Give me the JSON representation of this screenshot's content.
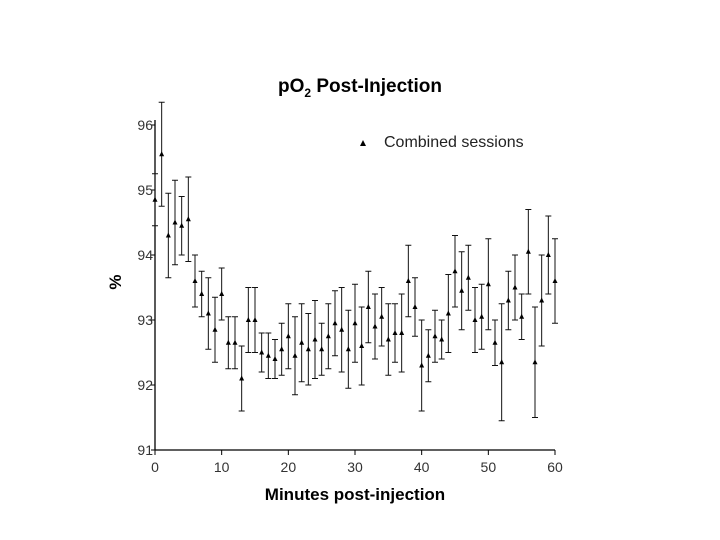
{
  "chart_data": {
    "type": "scatter",
    "title_main": "pO",
    "title_sub": "2",
    "title_rest": " Post-Injection",
    "xlabel": "Minutes post-injection",
    "ylabel": "%",
    "xlim": [
      0,
      60
    ],
    "ylim": [
      91,
      96
    ],
    "xticks": [
      "0",
      "10",
      "20",
      "30",
      "40",
      "50",
      "60"
    ],
    "yticks": [
      "91",
      "92",
      "93",
      "94",
      "95",
      "96"
    ],
    "grid": false,
    "legend_position": "top-right",
    "series": [
      {
        "name": "Combined sessions",
        "marker": "triangle",
        "x": [
          0,
          1,
          2,
          3,
          4,
          5,
          6,
          7,
          8,
          9,
          10,
          11,
          12,
          13,
          14,
          15,
          16,
          17,
          18,
          19,
          20,
          21,
          22,
          23,
          24,
          25,
          26,
          27,
          28,
          29,
          30,
          31,
          32,
          33,
          34,
          35,
          36,
          37,
          38,
          39,
          40,
          41,
          42,
          43,
          44,
          45,
          46,
          47,
          48,
          49,
          50,
          51,
          52,
          53,
          54,
          55,
          56,
          57,
          58,
          59,
          60
        ],
        "y": [
          94.85,
          95.55,
          94.3,
          94.5,
          94.45,
          94.55,
          93.6,
          93.4,
          93.1,
          92.85,
          93.4,
          92.65,
          92.65,
          92.1,
          93.0,
          93.0,
          92.5,
          92.45,
          92.4,
          92.55,
          92.75,
          92.45,
          92.65,
          92.55,
          92.7,
          92.55,
          92.75,
          92.95,
          92.85,
          92.55,
          92.95,
          92.6,
          93.2,
          92.9,
          93.05,
          92.7,
          92.8,
          92.8,
          93.6,
          93.2,
          92.3,
          92.45,
          92.75,
          92.7,
          93.1,
          93.75,
          93.45,
          93.65,
          93.0,
          93.05,
          93.55,
          92.65,
          92.35,
          93.3,
          93.5,
          93.05,
          94.05,
          92.35,
          93.3,
          94.0,
          93.6
        ],
        "err": [
          0.4,
          0.8,
          0.65,
          0.65,
          0.45,
          0.65,
          0.4,
          0.35,
          0.55,
          0.5,
          0.4,
          0.4,
          0.4,
          0.5,
          0.5,
          0.5,
          0.3,
          0.35,
          0.3,
          0.4,
          0.5,
          0.6,
          0.6,
          0.55,
          0.6,
          0.4,
          0.5,
          0.5,
          0.65,
          0.6,
          0.6,
          0.6,
          0.55,
          0.5,
          0.45,
          0.55,
          0.45,
          0.6,
          0.55,
          0.45,
          0.7,
          0.4,
          0.4,
          0.3,
          0.6,
          0.55,
          0.6,
          0.5,
          0.5,
          0.5,
          0.7,
          0.35,
          0.9,
          0.45,
          0.5,
          0.35,
          0.65,
          0.85,
          0.7,
          0.6,
          0.65
        ]
      }
    ]
  }
}
